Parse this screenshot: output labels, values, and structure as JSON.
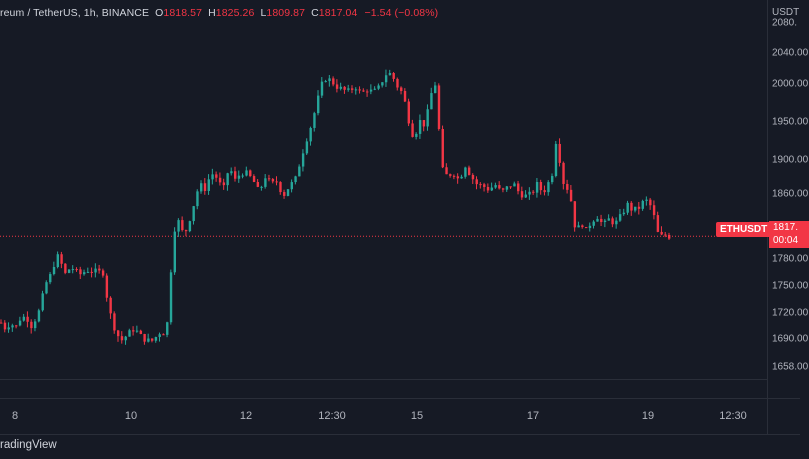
{
  "header": {
    "symbol_text": "reum / TetherUS, 1h, BINANCE",
    "o_label": "O",
    "o_value": "1818.57",
    "h_label": "H",
    "h_value": "1825.26",
    "l_label": "L",
    "l_value": "1809.87",
    "c_label": "C",
    "c_value": "1817.04",
    "change": "−1.54 (−0.08%)"
  },
  "price_axis": {
    "currency": "USDT",
    "top_partial": "2080.",
    "ticks": [
      "2040.00",
      "2000.00",
      "1950.00",
      "1900.00",
      "1860.00",
      "1817.",
      "1780.00",
      "1750.00",
      "1720.00",
      "1690.00",
      "1658.00"
    ]
  },
  "time_axis": {
    "ticks": [
      "8",
      "10",
      "12",
      "12:30",
      "15",
      "17",
      "19",
      "12:30"
    ]
  },
  "ticker_tag": "ETHUSDT",
  "last_price": "1817.",
  "countdown": "00:04",
  "colors": {
    "up": "#26a69a",
    "down": "#f23645",
    "background": "#161a25",
    "grid": "#2a2e39"
  },
  "footer": {
    "brand": "radingView"
  },
  "chart_data": {
    "type": "candlestick",
    "ylim": [
      1650,
      2085
    ],
    "grid": false,
    "last_price_value": 1817.04,
    "close_path": [
      [
        0,
        1712
      ],
      [
        3,
        1705
      ],
      [
        10,
        1712
      ],
      [
        14,
        1704
      ],
      [
        18,
        1716
      ],
      [
        25,
        1720
      ],
      [
        30,
        1708
      ],
      [
        37,
        1722
      ],
      [
        42,
        1746
      ],
      [
        46,
        1764
      ],
      [
        51,
        1772
      ],
      [
        55,
        1796
      ],
      [
        60,
        1784
      ],
      [
        64,
        1771
      ],
      [
        70,
        1780
      ],
      [
        78,
        1770
      ],
      [
        86,
        1776
      ],
      [
        94,
        1774
      ],
      [
        102,
        1773
      ],
      [
        106,
        1742
      ],
      [
        110,
        1718
      ],
      [
        115,
        1700
      ],
      [
        120,
        1690
      ],
      [
        127,
        1698
      ],
      [
        133,
        1705
      ],
      [
        140,
        1695
      ],
      [
        146,
        1690
      ],
      [
        152,
        1690
      ],
      [
        158,
        1700
      ],
      [
        163,
        1700
      ],
      [
        167,
        1715
      ],
      [
        170,
        1780
      ],
      [
        173,
        1825
      ],
      [
        177,
        1836
      ],
      [
        183,
        1817
      ],
      [
        189,
        1840
      ],
      [
        194,
        1862
      ],
      [
        198,
        1880
      ],
      [
        204,
        1875
      ],
      [
        210,
        1894
      ],
      [
        216,
        1888
      ],
      [
        222,
        1872
      ],
      [
        228,
        1902
      ],
      [
        234,
        1885
      ],
      [
        240,
        1895
      ],
      [
        246,
        1893
      ],
      [
        252,
        1885
      ],
      [
        258,
        1870
      ],
      [
        264,
        1890
      ],
      [
        270,
        1880
      ],
      [
        276,
        1884
      ],
      [
        282,
        1866
      ],
      [
        288,
        1878
      ],
      [
        294,
        1885
      ],
      [
        299,
        1908
      ],
      [
        304,
        1930
      ],
      [
        310,
        1952
      ],
      [
        315,
        1975
      ],
      [
        320,
        2000
      ],
      [
        325,
        2010
      ],
      [
        330,
        2006
      ],
      [
        336,
        1999
      ],
      [
        342,
        1995
      ],
      [
        348,
        1993
      ],
      [
        354,
        2000
      ],
      [
        360,
        1990
      ],
      [
        366,
        1996
      ],
      [
        372,
        1992
      ],
      [
        378,
        1998
      ],
      [
        384,
        2014
      ],
      [
        390,
        2015
      ],
      [
        396,
        2000
      ],
      [
        402,
        1990
      ],
      [
        408,
        1956
      ],
      [
        413,
        1935
      ],
      [
        418,
        1958
      ],
      [
        424,
        1952
      ],
      [
        430,
        1990
      ],
      [
        435,
        2005
      ],
      [
        440,
        1900
      ],
      [
        446,
        1890
      ],
      [
        452,
        1895
      ],
      [
        458,
        1885
      ],
      [
        464,
        1904
      ],
      [
        470,
        1890
      ],
      [
        476,
        1880
      ],
      [
        482,
        1878
      ],
      [
        488,
        1874
      ],
      [
        494,
        1880
      ],
      [
        500,
        1870
      ],
      [
        506,
        1876
      ],
      [
        512,
        1882
      ],
      [
        518,
        1870
      ],
      [
        524,
        1866
      ],
      [
        530,
        1868
      ],
      [
        536,
        1880
      ],
      [
        542,
        1870
      ],
      [
        548,
        1884
      ],
      [
        553,
        1900
      ],
      [
        556,
        1955
      ],
      [
        560,
        1885
      ],
      [
        565,
        1880
      ],
      [
        570,
        1860
      ],
      [
        575,
        1820
      ],
      [
        580,
        1835
      ],
      [
        585,
        1823
      ],
      [
        590,
        1835
      ],
      [
        596,
        1842
      ],
      [
        602,
        1830
      ],
      [
        608,
        1838
      ],
      [
        614,
        1832
      ],
      [
        620,
        1842
      ],
      [
        626,
        1856
      ],
      [
        632,
        1848
      ],
      [
        638,
        1852
      ],
      [
        644,
        1862
      ],
      [
        650,
        1853
      ],
      [
        655,
        1832
      ],
      [
        658,
        1812
      ],
      [
        662,
        1820
      ],
      [
        668,
        1817
      ]
    ],
    "candle_count": 178,
    "seed": 7
  }
}
